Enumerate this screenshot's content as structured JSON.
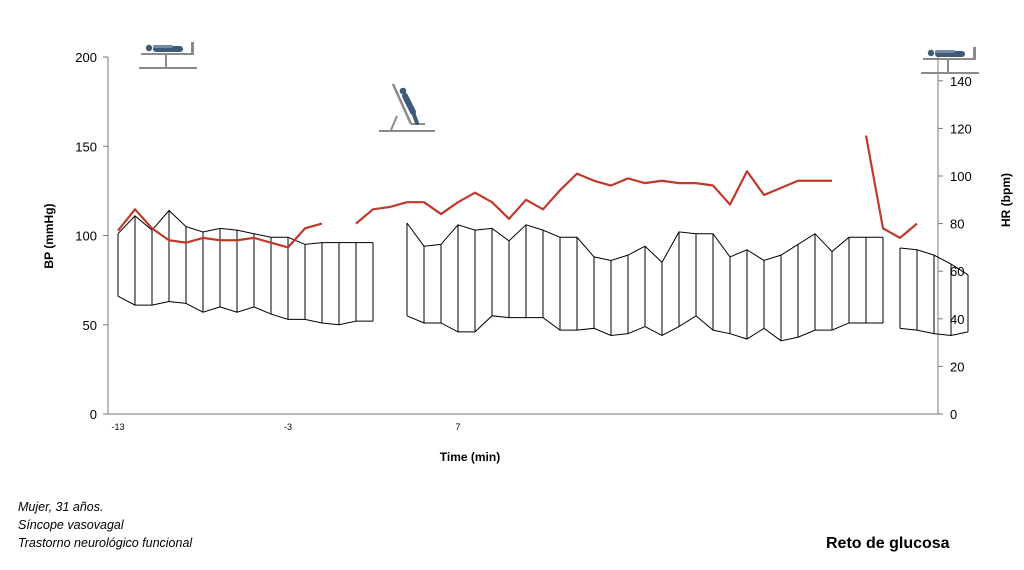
{
  "chart_data": {
    "type": "line",
    "title": "",
    "xlabel": "Time (min)",
    "ylabel_left": "BP (mmHg)",
    "ylabel_right": "HR (bpm)",
    "ylim_left": [
      0,
      200
    ],
    "ylim_right": [
      0,
      150
    ],
    "yticks_left": [
      0,
      50,
      100,
      150,
      200
    ],
    "yticks_right": [
      0,
      20,
      40,
      60,
      80,
      100,
      120,
      140
    ],
    "xlim": [
      -13,
      35
    ],
    "xticks": [
      -13,
      -3,
      7
    ],
    "grid": false,
    "legend": "none",
    "series": [
      {
        "kind": "bp_range",
        "color": "#000000",
        "segments": [
          {
            "x": [
              -13,
              -12,
              -11,
              -10,
              -9,
              -8,
              -7,
              -6,
              -5,
              -4,
              -3,
              -2,
              -1,
              0,
              1,
              2
            ],
            "systolic": [
              101,
              111,
              103,
              114,
              105,
              102,
              104,
              103,
              101,
              99,
              99,
              95,
              96,
              96,
              96,
              96
            ],
            "diastolic": [
              66,
              61,
              61,
              63,
              62,
              57,
              60,
              57,
              60,
              56,
              53,
              53,
              51,
              50,
              52,
              52
            ]
          },
          {
            "x": [
              4,
              5,
              6,
              7,
              8,
              9,
              10,
              11,
              12,
              13,
              14,
              15,
              16,
              17,
              18,
              19,
              20,
              21,
              22,
              23,
              24,
              25,
              26,
              27,
              28,
              29,
              30,
              31,
              32
            ],
            "systolic": [
              107,
              94,
              95,
              106,
              103,
              104,
              97,
              106,
              103,
              99,
              99,
              88,
              86,
              89,
              94,
              85,
              102,
              101,
              101,
              88,
              92,
              86,
              89,
              95,
              101,
              91,
              99,
              99,
              99
            ],
            "diastolic": [
              55,
              51,
              51,
              46,
              46,
              55,
              54,
              54,
              54,
              47,
              47,
              48,
              44,
              45,
              49,
              44,
              49,
              55,
              47,
              45,
              42,
              48,
              41,
              43,
              47,
              47,
              51,
              51,
              51
            ]
          },
          {
            "x": [
              33,
              34,
              35,
              36,
              37
            ],
            "systolic": [
              93,
              92,
              89,
              84,
              78
            ],
            "diastolic": [
              48,
              47,
              45,
              44,
              46
            ]
          }
        ]
      },
      {
        "kind": "hr",
        "axis": "right",
        "color": "#c0392b",
        "segments": [
          {
            "x": [
              -13,
              -12,
              -11,
              -10,
              -9,
              -8,
              -7,
              -6,
              -5,
              -4,
              -3,
              -2,
              -1
            ],
            "y": [
              77,
              86,
              78,
              73,
              72,
              74,
              73,
              73,
              74,
              72,
              70,
              78,
              80
            ]
          },
          {
            "x": [
              1,
              2,
              3,
              4,
              5,
              6,
              7,
              8,
              9,
              10,
              11,
              12,
              13,
              14,
              15,
              16,
              17,
              18,
              19,
              20,
              21,
              22,
              23,
              24,
              25,
              26,
              27,
              28,
              29
            ],
            "y": [
              80,
              86,
              87,
              89,
              89,
              84,
              89,
              93,
              89,
              82,
              90,
              86,
              94,
              101,
              98,
              96,
              99,
              97,
              98,
              97,
              97,
              96,
              88,
              102,
              92,
              95,
              98,
              98,
              98
            ]
          },
          {
            "x": [
              31,
              32,
              33,
              34
            ],
            "y": [
              117,
              78,
              74,
              80
            ]
          }
        ]
      }
    ],
    "annotations": [
      {
        "icon": "supine-patient-icon",
        "x": -10
      },
      {
        "icon": "tilted-patient-icon",
        "x": 4
      },
      {
        "icon": "supine-patient-icon",
        "x": 36
      }
    ]
  },
  "notes": {
    "line1": "Mujer, 31 años.",
    "line2": "Síncope vasovagal",
    "line3": "Trastorno neurológico funcional"
  },
  "title": "Reto de glucosa"
}
